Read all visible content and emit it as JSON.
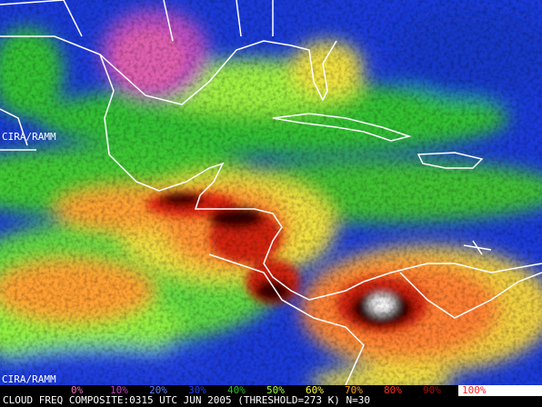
{
  "credits": {
    "top": "CIRA/RAMM",
    "bottom": "CIRA/RAMM"
  },
  "color_scale": [
    {
      "label": "0%",
      "color": "#f070c0"
    },
    {
      "label": "10%",
      "color": "#c040c0"
    },
    {
      "label": "20%",
      "color": "#6080ff"
    },
    {
      "label": "30%",
      "color": "#2040ff"
    },
    {
      "label": "40%",
      "color": "#20c020"
    },
    {
      "label": "50%",
      "color": "#a0ff40"
    },
    {
      "label": "60%",
      "color": "#ffff40"
    },
    {
      "label": "70%",
      "color": "#ffa020"
    },
    {
      "label": "80%",
      "color": "#ff3020"
    },
    {
      "label": "90%",
      "color": "#a01010"
    },
    {
      "label": "100%",
      "color": "#ff2020"
    }
  ],
  "caption": "CLOUD FREQ COMPOSITE:0315 UTC JUN 2005 (THRESHOLD=273 K) N=30"
}
